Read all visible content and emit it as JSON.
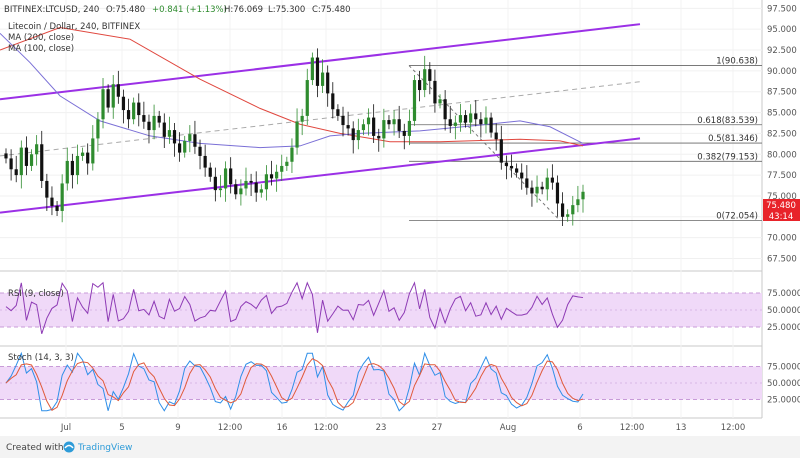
{
  "header": {
    "exchange": "BITFINEX:LTCUSD, 240",
    "open": "O:75.480",
    "change": "+0.841 (+1.13%)",
    "high": "H:76.069",
    "low": "L:75.300",
    "close": "C:75.480",
    "title": "Litecoin / Dollar, 240, BITFINEX",
    "ma200": "MA (200, close)",
    "ma100": "MA (100, close)"
  },
  "price_badge": {
    "price": "75.480",
    "countdown": "43:14"
  },
  "footer": {
    "created_with": "Created with",
    "brand": "TradingView"
  },
  "colors": {
    "up": "#2f8c2f",
    "down": "#111111",
    "channel": "#9b30e6",
    "ma200": "#e0473e",
    "ma100": "#7a6fd6",
    "fib": "#666666",
    "rsi": "#8e3bb5",
    "stoch_k": "#2f8fe8",
    "stoch_d": "#e05a3a",
    "band_fill": "#f0d9f8",
    "badge": "#e8232a"
  },
  "chart_data": [
    {
      "type": "candlestick",
      "title": "Litecoin / Dollar, 240, BITFINEX",
      "ylim": [
        66,
        98.5
      ],
      "y_ticks": [
        "97.500",
        "95.000",
        "92.500",
        "90.000",
        "87.500",
        "85.000",
        "82.500",
        "80.000",
        "77.500",
        "75.000",
        "72.500",
        "70.000",
        "67.500"
      ],
      "x_ticks": [
        "Jul",
        "5",
        "9",
        "12:00",
        "16",
        "12:00",
        "23",
        "27",
        "Aug",
        "6",
        "12:00",
        "13",
        "12:00"
      ],
      "channel": {
        "upper": [
          [
            0,
            86.6
          ],
          [
            640,
            95.6
          ]
        ],
        "lower": [
          [
            0,
            73.0
          ],
          [
            640,
            81.9
          ]
        ],
        "mid_dashed": [
          [
            0,
            79.8
          ],
          [
            640,
            88.7
          ]
        ]
      },
      "fibonacci": [
        {
          "label": "1(90.638)",
          "value": 90.638
        },
        {
          "label": "0.618(83.539)",
          "value": 83.539
        },
        {
          "label": "0.5(81.346)",
          "value": 81.346
        },
        {
          "label": "0.382(79.153)",
          "value": 79.153
        },
        {
          "label": "0(72.054)",
          "value": 72.054
        }
      ],
      "ma200": [
        [
          0,
          92.5
        ],
        [
          60,
          95.2
        ],
        [
          130,
          93.8
        ],
        [
          200,
          89.0
        ],
        [
          260,
          85.5
        ],
        [
          300,
          83.6
        ],
        [
          340,
          82.5
        ],
        [
          390,
          81.5
        ],
        [
          440,
          81.5
        ],
        [
          520,
          81.8
        ],
        [
          560,
          81.6
        ],
        [
          583,
          81.0
        ]
      ],
      "ma100": [
        [
          0,
          94.5
        ],
        [
          30,
          91.0
        ],
        [
          60,
          87.0
        ],
        [
          100,
          84.0
        ],
        [
          150,
          82.2
        ],
        [
          200,
          81.3
        ],
        [
          260,
          80.8
        ],
        [
          300,
          81.0
        ],
        [
          330,
          82.2
        ],
        [
          360,
          82.5
        ],
        [
          420,
          82.8
        ],
        [
          480,
          83.5
        ],
        [
          520,
          84.0
        ],
        [
          550,
          83.3
        ],
        [
          583,
          81.3
        ]
      ],
      "close": [
        79.5,
        78.2,
        77.5,
        80.8,
        78.6,
        80.0,
        81.2,
        76.8,
        74.8,
        73.8,
        73.2,
        76.5,
        79.2,
        77.5,
        79.8,
        80.2,
        78.9,
        81.9,
        84.2,
        87.8,
        85.6,
        88.4,
        86.9,
        85.3,
        84.2,
        86.2,
        84.7,
        83.9,
        82.9,
        84.6,
        83.8,
        82.1,
        82.9,
        81.3,
        80.2,
        81.6,
        82.4,
        80.9,
        79.8,
        78.4,
        77.3,
        75.7,
        75.9,
        78.3,
        76.4,
        75.2,
        75.9,
        76.8,
        76.6,
        75.4,
        75.8,
        77.6,
        77.1,
        77.9,
        78.6,
        79.1,
        80.8,
        83.9,
        84.6,
        88.9,
        91.6,
        88.2,
        89.8,
        87.3,
        85.4,
        84.6,
        83.5,
        83.1,
        81.7,
        82.9,
        83.6,
        84.4,
        82.2,
        81.9,
        84.1,
        83.6,
        84.2,
        82.8,
        82.2,
        84.0,
        88.9,
        87.7,
        90.2,
        88.8,
        86.1,
        86.6,
        84.2,
        83.4,
        83.8,
        84.7,
        83.8,
        84.9,
        84.2,
        83.6,
        84.4,
        82.6,
        81.8,
        79.0,
        78.6,
        78.3,
        77.8,
        77.1,
        76.0,
        75.3,
        76.1,
        75.8,
        77.2,
        76.6,
        74.1,
        72.5,
        72.8,
        73.9,
        74.6,
        75.5
      ],
      "rsi": {
        "name": "RSI (9, close)",
        "ticks": [
          "75.0000",
          "50.0000",
          "25.0000"
        ],
        "range": [
          0,
          100
        ]
      },
      "stoch": {
        "name": "Stoch (14, 3, 3)",
        "ticks": [
          "75.0000",
          "50.0000",
          "25.0000"
        ],
        "range": [
          0,
          100
        ]
      }
    }
  ]
}
